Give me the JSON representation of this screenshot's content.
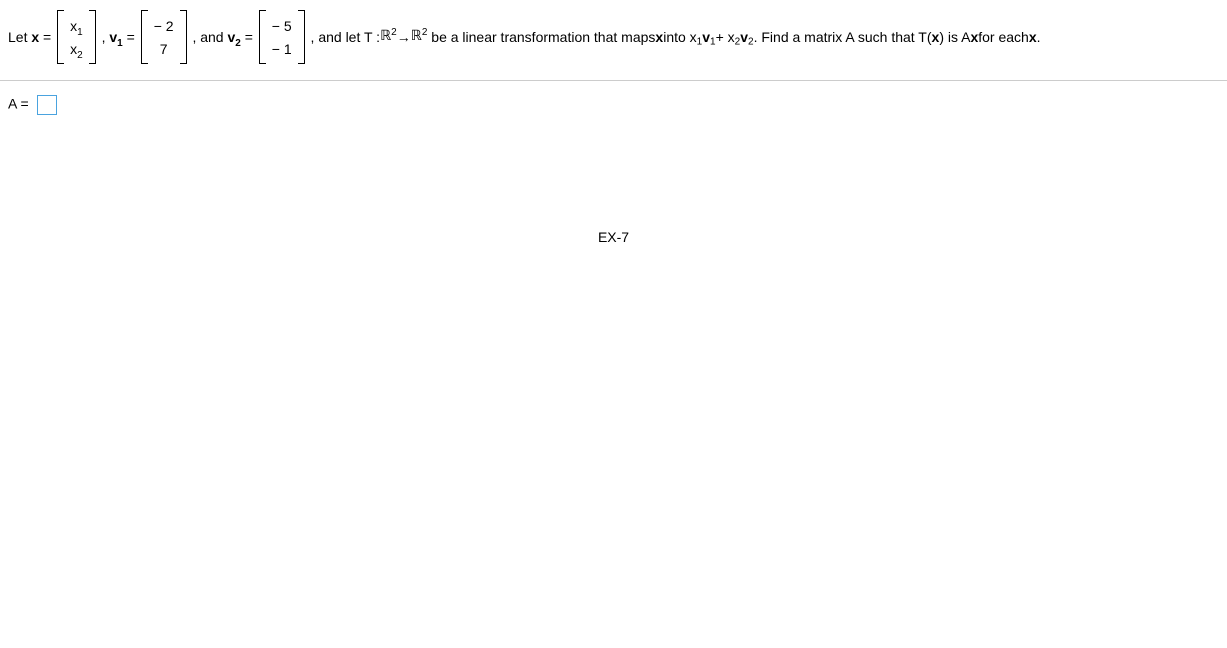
{
  "problem": {
    "let_x": "Let ",
    "x_eq": " = ",
    "x_label": "x",
    "x_top": "x",
    "x_top_sub": "1",
    "x_bot": "x",
    "x_bot_sub": "2",
    "comma1": ", ",
    "v1_label": "v",
    "v1_sub": "1",
    "eq2": " = ",
    "v1_top": "− 2",
    "v1_bot": "7",
    "comma2": ", and ",
    "v2_label": "v",
    "v2_sub": "2",
    "eq3": " = ",
    "v2_top": "− 5",
    "v2_bot": "− 1",
    "tail1": ", and let T : ",
    "R1": "ℝ",
    "sup1": "2",
    "arrow": "→",
    "R2": "ℝ",
    "sup2": "2",
    "tail2": " be a linear transformation that maps ",
    "x_bold": "x",
    "into": " into x",
    "s1": "1",
    "v_a": "v",
    "s1b": "1",
    "plus": " + x",
    "s2": "2",
    "v_b": "v",
    "s2b": "2",
    "tail3": ". Find a matrix A such that T(",
    "x_bold2": "x",
    "tail4": ") is A",
    "x_bold3": "x",
    "tail5": " for each ",
    "x_bold4": "x",
    "period": "."
  },
  "answer": {
    "A_eq": "A = "
  },
  "footer": "EX-7"
}
